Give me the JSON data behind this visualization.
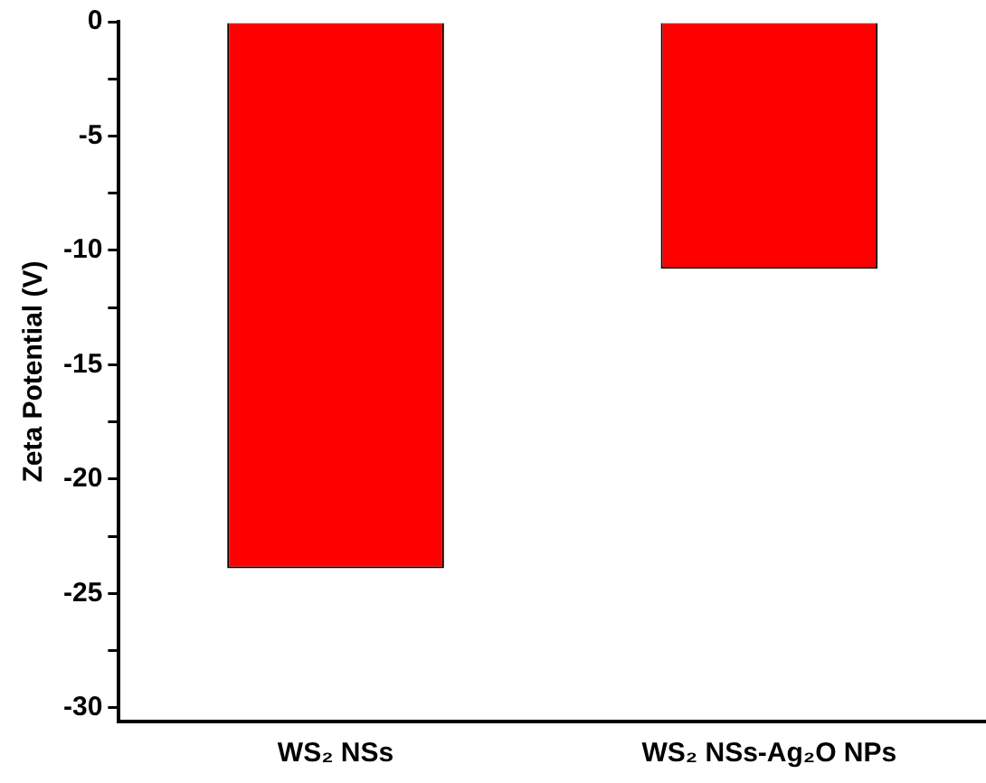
{
  "chart_data": {
    "type": "bar",
    "ylabel": "Zeta Potential (V)",
    "categories": [
      "WS₂ NSs",
      "WS₂ NSs-Ag₂O NPs"
    ],
    "values": [
      -23.9,
      -10.8
    ],
    "color": "#ff0000",
    "ylim": [
      -30.6,
      0
    ],
    "yticks": [
      -30,
      {
        "value": -27.5,
        "label": null
      },
      -25,
      {
        "value": -22.5,
        "label": null
      },
      -20,
      {
        "value": -17.5,
        "label": null
      },
      -15,
      {
        "value": -12.5,
        "label": null
      },
      -10,
      {
        "value": -7.5,
        "label": null
      },
      -5,
      {
        "value": -2.5,
        "label": null
      },
      0
    ],
    "grid": false,
    "legend": false
  }
}
